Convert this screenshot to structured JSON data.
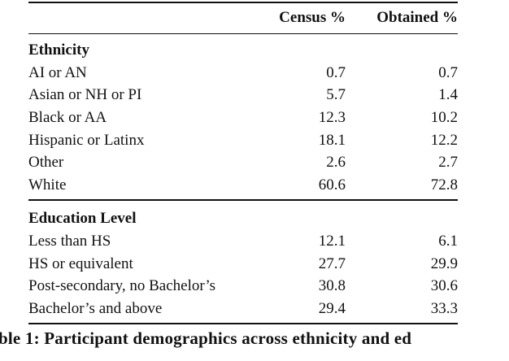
{
  "table": {
    "columns": [
      "Census %",
      "Obtained %"
    ],
    "sections": [
      {
        "title": "Ethnicity",
        "rows": [
          [
            "AI or AN",
            0.7,
            0.7
          ],
          [
            "Asian or NH or PI",
            5.7,
            1.4
          ],
          [
            "Black or AA",
            12.3,
            10.2
          ],
          [
            "Hispanic or Latinx",
            18.1,
            12.2
          ],
          [
            "Other",
            2.6,
            2.7
          ],
          [
            "White",
            60.6,
            72.8
          ]
        ]
      },
      {
        "title": "Education Level",
        "rows": [
          [
            "Less than HS",
            12.1,
            6.1
          ],
          [
            "HS or equivalent",
            27.7,
            29.9
          ],
          [
            "Post-secondary, no Bachelor’s",
            30.8,
            30.6
          ],
          [
            "Bachelor’s and above",
            29.4,
            33.3
          ]
        ]
      }
    ]
  },
  "caption": "ble 1:  Participant demographics across ethnicity and ed"
}
